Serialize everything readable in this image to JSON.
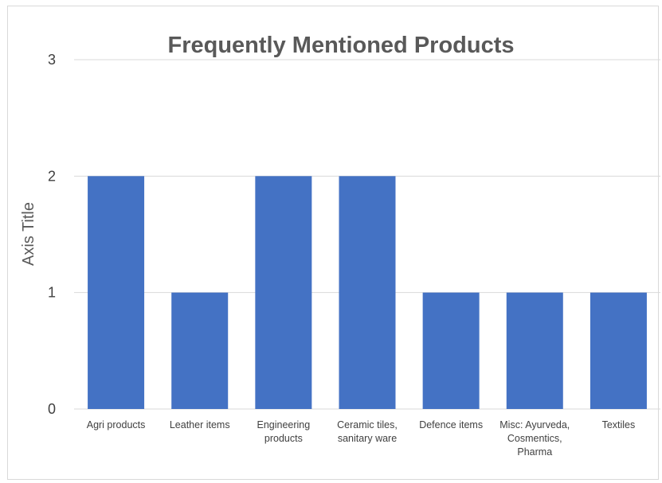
{
  "chart_data": {
    "type": "bar",
    "title": "Frequently Mentioned Products",
    "xlabel": "",
    "ylabel": "Axis Title",
    "categories": [
      "Agri products",
      "Leather items",
      "Engineering products",
      "Ceramic tiles, sanitary ware",
      "Defence items",
      "Misc: Ayurveda, Cosmentics, Pharma",
      "Textiles"
    ],
    "category_lines": [
      [
        "Agri products"
      ],
      [
        "Leather items"
      ],
      [
        "Engineering",
        "products"
      ],
      [
        "Ceramic tiles,",
        "sanitary ware"
      ],
      [
        "Defence items"
      ],
      [
        "Misc: Ayurveda,",
        "Cosmentics,",
        "Pharma"
      ],
      [
        "Textiles"
      ]
    ],
    "values": [
      2,
      1,
      2,
      2,
      1,
      1,
      1
    ],
    "ylim": [
      0,
      3
    ],
    "yticks": [
      "0",
      "1",
      "2",
      "3"
    ],
    "grid": true,
    "bar_color": "#4472c4",
    "grid_color": "#d9d9d9"
  }
}
